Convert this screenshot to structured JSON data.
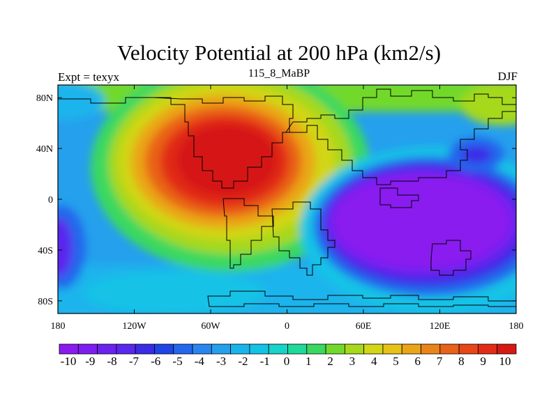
{
  "title": "Velocity Potential at 200 hPa (km2/s)",
  "left_string": "Expt = texyx",
  "center_string": "115_8_MaBP",
  "right_string": "DJF",
  "map": {
    "projection": "cylindrical-equidistant",
    "lon_range": [
      -180,
      180
    ],
    "lat_range": [
      -90,
      90
    ],
    "lon_ticks": [
      "180",
      "120W",
      "60W",
      "0",
      "60E",
      "120E",
      "180"
    ],
    "lat_ticks": [
      "80N",
      "40N",
      "0",
      "40S",
      "80S"
    ]
  },
  "field": {
    "name": "velocity potential",
    "units": "km2/s",
    "level": "200 hPa",
    "centers": [
      {
        "label": "max over Atlantic / Americas",
        "lon": -45,
        "lat": 22,
        "value": 10
      },
      {
        "label": "min over Indian Ocean / Maritime Continent",
        "lon": 100,
        "lat": -15,
        "value": -10
      },
      {
        "label": "secondary min east of Japan",
        "lon": 147,
        "lat": 35,
        "value": -5
      },
      {
        "label": "min at dateline southern tropics",
        "lon": -178,
        "lat": -35,
        "value": -8
      }
    ]
  },
  "colorbar": {
    "labels": [
      "-10",
      "-9",
      "-8",
      "-7",
      "-6",
      "-5",
      "-4",
      "-3",
      "-2",
      "-1",
      "0",
      "1",
      "2",
      "3",
      "4",
      "5",
      "6",
      "7",
      "8",
      "9",
      "10"
    ],
    "colors": [
      "#8a1aef",
      "#7d1ef0",
      "#6c22ef",
      "#5a27ee",
      "#3a2be6",
      "#1f45e6",
      "#2368ec",
      "#2a85ee",
      "#25a0ed",
      "#1ab4ec",
      "#12c3e6",
      "#17d3c9",
      "#1ed99a",
      "#3bd860",
      "#72d92c",
      "#a6d81c",
      "#d2d619",
      "#e6c21a",
      "#eaa519",
      "#ea8419",
      "#e96219",
      "#e74618",
      "#e12c16",
      "#d61913"
    ]
  }
}
